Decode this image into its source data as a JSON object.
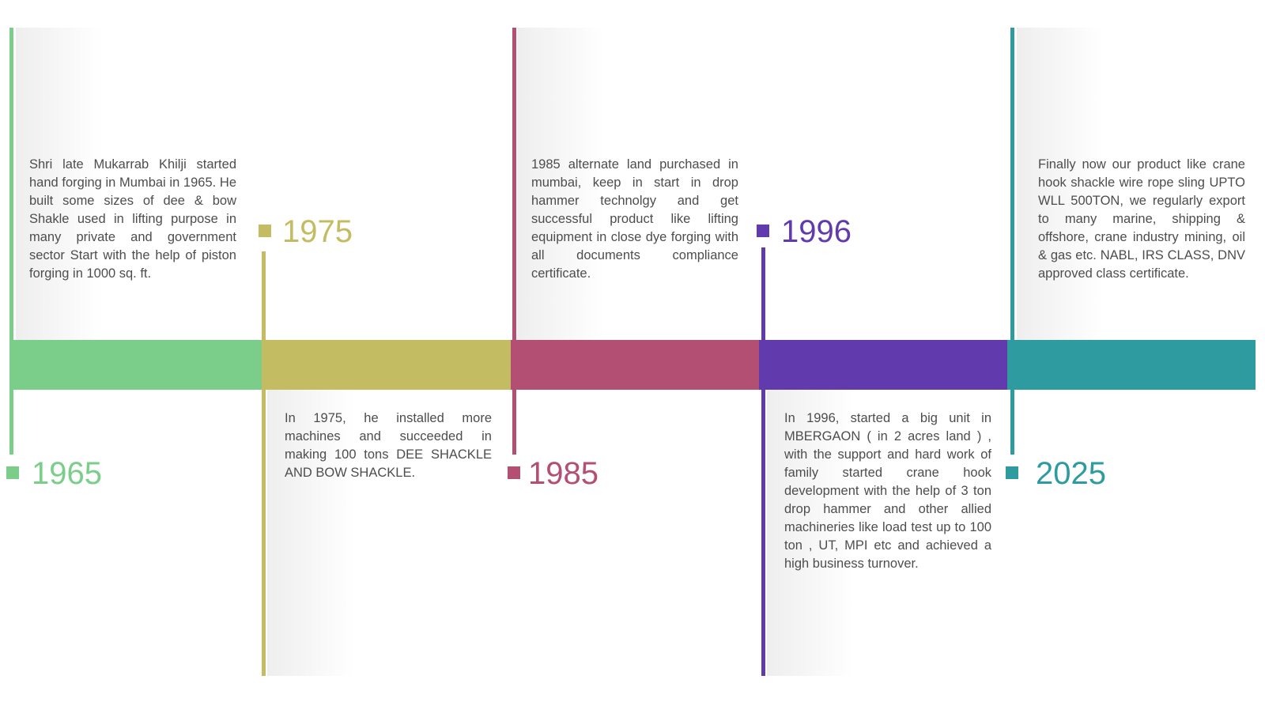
{
  "milestones": [
    {
      "year": "1965",
      "color": "#7ACE8A",
      "position": "below",
      "text": "Shri late Mukarrab Khilji started hand forging in Mumbai in 1965. He built some sizes of dee & bow Shakle used in lifting purpose in many private and government sector Start with the help of piston forging in 1000 sq. ft."
    },
    {
      "year": "1975",
      "color": "#C4BC62",
      "position": "above",
      "text": "In 1975, he installed more machines and succeeded in making 100 tons DEE SHACKLE AND BOW SHACKLE."
    },
    {
      "year": "1985",
      "color": "#B24F72",
      "position": "below",
      "text": "1985 alternate land purchased in mumbai, keep in start in drop hammer technolgy and get successful product like lifting equipment in close dye forging with all documents compliance certificate."
    },
    {
      "year": "1996",
      "color": "#613BAE",
      "position": "above",
      "text": "In 1996,  started a big unit in MBERGAON ( in 2 acres land ) , with the support and hard work of family started crane hook development with the help of 3 ton  drop hammer and other allied machineries like load test up to 100 ton , UT, MPI etc  and achieved a high business turnover."
    },
    {
      "year": "2025",
      "color": "#2D9BA0",
      "position": "below",
      "text": "Finally now our product like crane hook shackle wire rope sling UPTO WLL 500TON, we regularly export to many marine, shipping & offshore, crane industry mining, oil & gas etc.  NABL, IRS CLASS, DNV approved class certificate."
    }
  ]
}
